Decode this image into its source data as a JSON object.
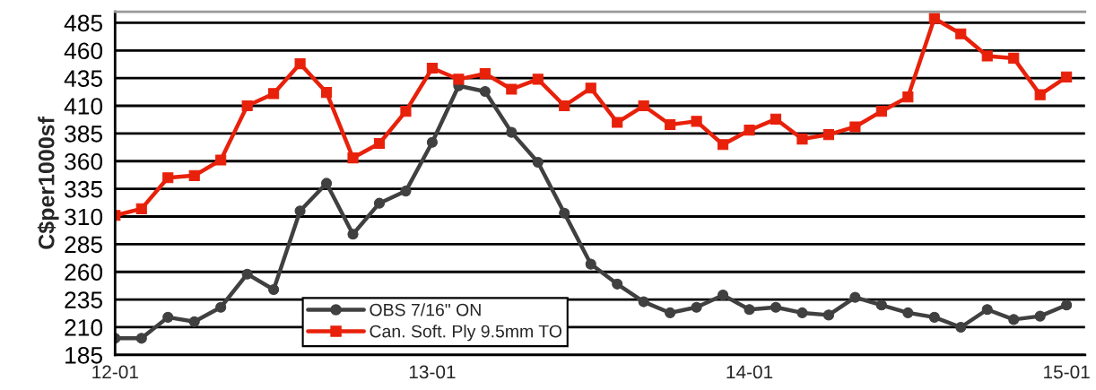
{
  "chart_data": {
    "type": "line",
    "ylabel": "C$per1000sf",
    "categories": [
      "12-01",
      null,
      null,
      null,
      null,
      null,
      null,
      null,
      null,
      null,
      null,
      null,
      "13-01",
      null,
      null,
      null,
      null,
      null,
      null,
      null,
      null,
      null,
      null,
      null,
      "14-01",
      null,
      null,
      null,
      null,
      null,
      null,
      null,
      null,
      null,
      null,
      null,
      "15-01"
    ],
    "series": [
      {
        "name": "OBS 7/16\" ON",
        "color": "#404040",
        "marker": "circle",
        "values": [
          200,
          200,
          219,
          215,
          228,
          258,
          244,
          315,
          340,
          294,
          322,
          333,
          377,
          428,
          423,
          386,
          359,
          313,
          267,
          249,
          233,
          223,
          228,
          239,
          226,
          228,
          223,
          221,
          237,
          230,
          223,
          219,
          210,
          226,
          217,
          220,
          230
        ]
      },
      {
        "name": "Can. Soft. Ply 9.5mm TO",
        "color": "#e8210b",
        "marker": "square",
        "values": [
          311,
          317,
          345,
          347,
          361,
          410,
          421,
          448,
          422,
          363,
          376,
          405,
          444,
          434,
          439,
          425,
          434,
          410,
          426,
          395,
          410,
          393,
          396,
          375,
          388,
          398,
          380,
          384,
          391,
          405,
          418,
          489,
          475,
          455,
          453,
          420,
          436
        ]
      }
    ],
    "ylim": [
      185,
      495
    ],
    "yticks": [
      185,
      210,
      235,
      260,
      285,
      310,
      335,
      360,
      385,
      410,
      435,
      460,
      485
    ],
    "grid": "y",
    "legend": "bottom",
    "line_style": "solid"
  }
}
